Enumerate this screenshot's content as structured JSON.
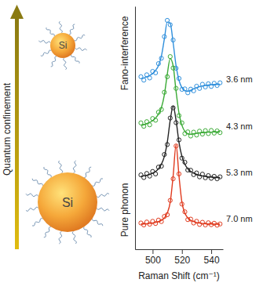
{
  "chart_data": {
    "type": "scatter",
    "xlabel": "Raman Shift (cm⁻¹)",
    "x": [
      492,
      494,
      496,
      498,
      500,
      502,
      504,
      506,
      508,
      510,
      512,
      514,
      516,
      518,
      520,
      522,
      524,
      526,
      528,
      530,
      532,
      534,
      536,
      538,
      540,
      542,
      544,
      546
    ],
    "xlim": [
      488,
      548
    ],
    "xticks": [
      500,
      520,
      540
    ],
    "ylim": [
      0,
      100
    ],
    "yticks": [],
    "tick_labels": "x",
    "series": [
      {
        "name": "3.6 nm",
        "color": "#2f8fdc",
        "marker": "circle",
        "line_style": "solid",
        "values": [
          71.0,
          69.6,
          71.8,
          70.5,
          73.2,
          72.6,
          76.4,
          78.6,
          87.5,
          94.2,
          92.4,
          86.1,
          74.5,
          70.3,
          65.8,
          66.0,
          64.4,
          65.9,
          65.2,
          67.1,
          66.2,
          67.9,
          66.8,
          68.1,
          67.0,
          68.3,
          67.4,
          68.5
        ],
        "fit": [
          70.2,
          70.5,
          70.9,
          71.5,
          72.3,
          73.6,
          75.6,
          79.5,
          86.5,
          93.5,
          93.0,
          85.0,
          75.5,
          69.5,
          66.5,
          65.3,
          65.0,
          65.4,
          66.0,
          66.5,
          66.9,
          67.2,
          67.4,
          67.6,
          67.7,
          67.8,
          67.8,
          67.9
        ]
      },
      {
        "name": "4.3 nm",
        "color": "#3aaa35",
        "marker": "circle",
        "line_style": "solid",
        "values": [
          52.0,
          50.6,
          52.5,
          51.2,
          53.8,
          53.1,
          56.4,
          57.5,
          64.6,
          71.0,
          79.3,
          74.6,
          66.2,
          55.0,
          52.0,
          47.6,
          48.3,
          46.6,
          48.2,
          47.0,
          48.6,
          47.4,
          48.8,
          47.6,
          48.9,
          47.8,
          48.7,
          48.0
        ],
        "fit": [
          51.0,
          51.3,
          51.7,
          52.2,
          52.9,
          54.0,
          55.6,
          58.3,
          63.5,
          72.0,
          78.5,
          75.5,
          65.0,
          56.0,
          51.0,
          48.5,
          47.5,
          47.3,
          47.5,
          47.7,
          47.9,
          48.0,
          48.1,
          48.2,
          48.2,
          48.3,
          48.3,
          48.3
        ]
      },
      {
        "name": "5.3 nm",
        "color": "#222222",
        "marker": "circle",
        "line_style": "solid",
        "values": [
          30.6,
          29.5,
          31.2,
          30.1,
          32.0,
          31.0,
          33.8,
          34.2,
          39.0,
          43.1,
          54.0,
          58.2,
          52.1,
          45.0,
          37.5,
          35.8,
          32.6,
          32.5,
          30.7,
          31.4,
          29.8,
          30.9,
          29.4,
          30.3,
          29.2,
          30.0,
          29.0,
          29.8
        ],
        "fit": [
          30.0,
          30.2,
          30.4,
          30.8,
          31.3,
          32.0,
          33.1,
          35.0,
          38.2,
          44.0,
          53.0,
          59.0,
          53.0,
          44.0,
          38.2,
          35.0,
          33.1,
          32.0,
          31.3,
          30.8,
          30.4,
          30.2,
          30.0,
          29.8,
          29.7,
          29.6,
          29.5,
          29.5
        ]
      },
      {
        "name": "7.0 nm",
        "color": "#e03a1e",
        "marker": "circle",
        "line_style": "solid",
        "values": [
          10.8,
          10.0,
          11.2,
          10.3,
          11.5,
          10.6,
          12.0,
          11.4,
          13.5,
          14.2,
          20.1,
          29.0,
          42.5,
          31.0,
          18.6,
          15.4,
          12.2,
          12.4,
          10.8,
          11.5,
          10.2,
          11.1,
          10.0,
          10.9,
          10.1,
          10.7,
          9.9,
          10.4
        ],
        "fit": [
          10.4,
          10.4,
          10.5,
          10.6,
          10.8,
          11.0,
          11.4,
          11.9,
          12.9,
          14.9,
          19.3,
          30.1,
          43.0,
          30.1,
          19.3,
          14.9,
          12.9,
          11.9,
          11.4,
          11.0,
          10.8,
          10.6,
          10.5,
          10.4,
          10.4,
          10.3,
          10.3,
          10.3
        ]
      }
    ],
    "annotations": [
      "Quantum confinement",
      "Fano-interference",
      "Pure phonon",
      "Si",
      "Si"
    ]
  }
}
